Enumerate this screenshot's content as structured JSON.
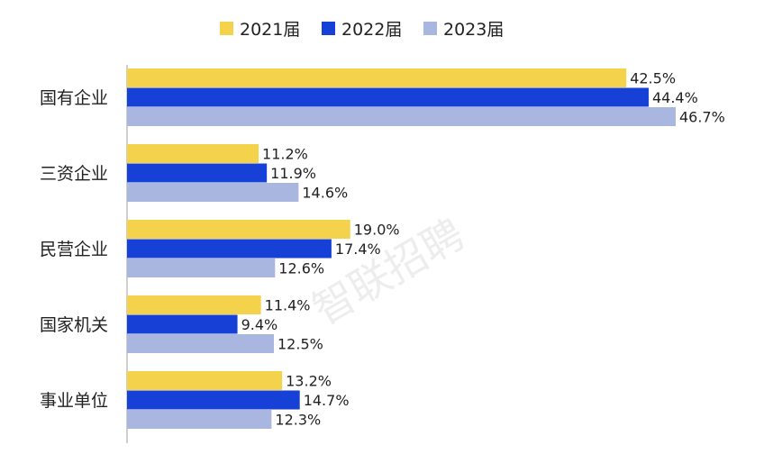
{
  "chart_data": {
    "type": "bar",
    "orientation": "horizontal",
    "categories": [
      "国有企业",
      "三资企业",
      "民营企业",
      "国家机关",
      "事业单位"
    ],
    "series": [
      {
        "name": "2021届",
        "color": "#f5d24b",
        "values": [
          42.5,
          11.2,
          19.0,
          11.4,
          13.2
        ],
        "labels": [
          "42.5%",
          "11.2%",
          "19.0%",
          "11.4%",
          "13.2%"
        ]
      },
      {
        "name": "2022届",
        "color": "#1740d6",
        "values": [
          44.4,
          11.9,
          17.4,
          9.4,
          14.7
        ],
        "labels": [
          "44.4%",
          "11.9%",
          "17.4%",
          "9.4%",
          "14.7%"
        ]
      },
      {
        "name": "2023届",
        "color": "#a9b6e0",
        "values": [
          46.7,
          14.6,
          12.6,
          12.5,
          12.3
        ],
        "labels": [
          "46.7%",
          "14.6%",
          "12.6%",
          "12.5%",
          "12.3%"
        ]
      }
    ],
    "xlim": [
      0,
      50
    ],
    "legend_position": "top",
    "grid": false,
    "watermark": "智联招聘"
  }
}
